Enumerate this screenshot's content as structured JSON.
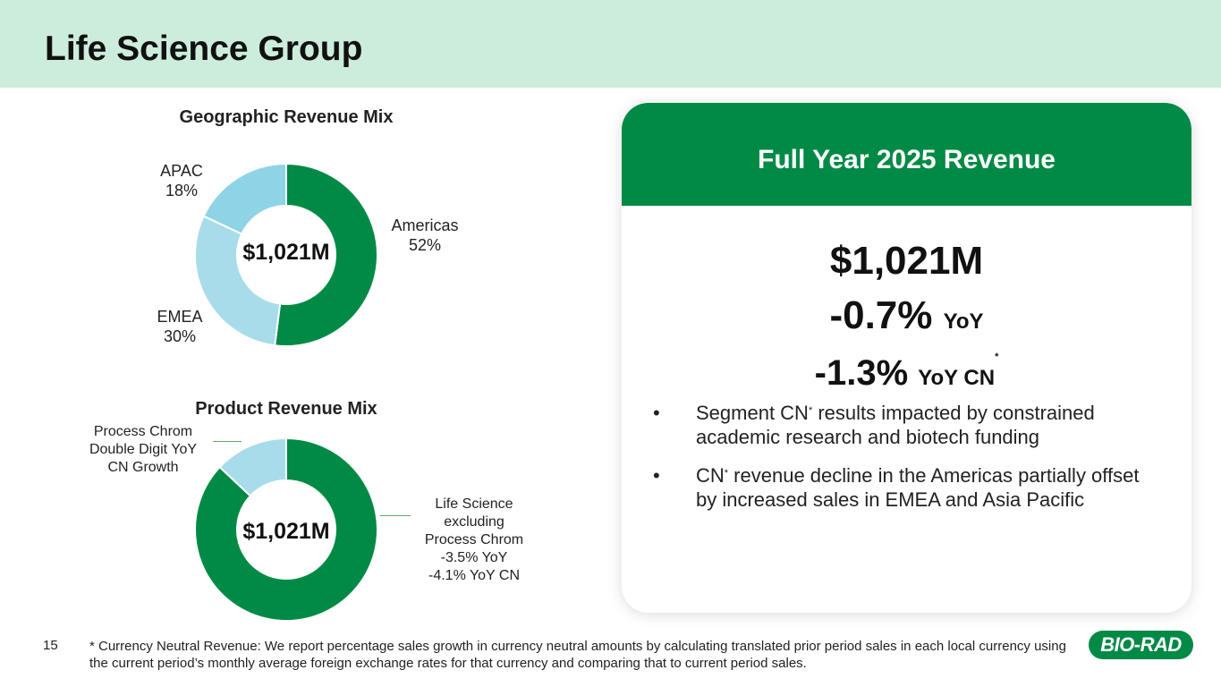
{
  "page_title": "Life Science Group",
  "geo": {
    "title": "Geographic Revenue Mix",
    "center": "$1,021M",
    "segments": [
      {
        "name": "Americas",
        "pct_label": "52%",
        "value": 52,
        "color": "#008a45"
      },
      {
        "name": "EMEA",
        "pct_label": "30%",
        "value": 30,
        "color": "#a8dceb"
      },
      {
        "name": "APAC",
        "pct_label": "18%",
        "value": 18,
        "color": "#8ed4e6"
      }
    ]
  },
  "product": {
    "title": "Product Revenue Mix",
    "center": "$1,021M",
    "segments": [
      {
        "value": 87,
        "color": "#008a45"
      },
      {
        "value": 13,
        "color": "#a8dceb"
      }
    ],
    "label_process": [
      "Process Chrom",
      "Double Digit YoY",
      "CN Growth"
    ],
    "label_ls": [
      "Life Science",
      "excluding",
      "Process Chrom",
      "-3.5% YoY",
      "-4.1% YoY CN"
    ]
  },
  "card": {
    "heading": "Full Year 2025 Revenue",
    "revenue": "$1,021M",
    "yoy_value": "-0.7%",
    "yoy_unit": "YoY",
    "cn_value": "-1.3%",
    "cn_unit": "YoY CN",
    "bullet_glyph": "•",
    "bullets": [
      {
        "a": "Segment CN",
        "b": " results impacted by constrained academic research and biotech funding"
      },
      {
        "a": "CN",
        "b": " revenue decline in the Americas partially offset by increased sales in EMEA and Asia Pacific"
      }
    ],
    "asterisk": "*"
  },
  "footnote": "* Currency Neutral Revenue: We report percentage sales growth in currency neutral amounts by calculating translated prior period sales in each local currency using the current period’s monthly average foreign exchange rates for that currency and comparing that to current period sales.",
  "page_number": "15",
  "logo_text": "BIO-RAD"
}
